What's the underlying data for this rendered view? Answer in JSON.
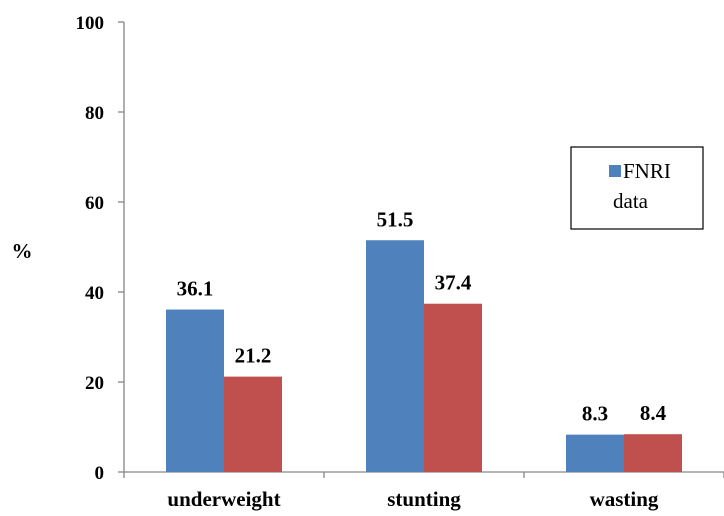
{
  "chart_data": {
    "type": "bar",
    "categories": [
      "underweight",
      "stunting",
      "wasting"
    ],
    "series": [
      {
        "name": "FNRI data",
        "values": [
          36.1,
          51.5,
          8.3
        ],
        "color": "#4F81BD"
      },
      {
        "values": [
          21.2,
          37.4,
          8.4
        ],
        "color": "#C0504D"
      }
    ],
    "ylabel": "%",
    "xlabel": "",
    "ylim": [
      0,
      100
    ],
    "yticks": [
      0,
      20,
      40,
      60,
      80,
      100
    ],
    "legend": {
      "position": "right",
      "lines": [
        "FNRI",
        "data"
      ]
    },
    "grid": false
  }
}
